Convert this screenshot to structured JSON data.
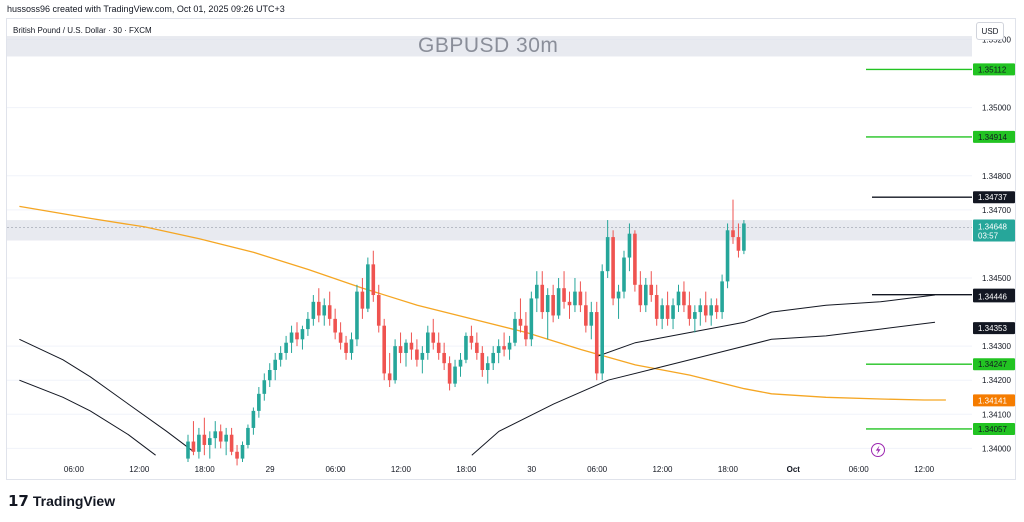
{
  "header": {
    "attribution": "hussoss96 created with TradingView.com, Oct 01, 2025 09:26 UTC+3"
  },
  "chart_header": {
    "symbol_line": "British Pound / U.S. Dollar · 30 · FXCM",
    "watermark": "GBPUSD 30m",
    "currency_button": "USD"
  },
  "footer": {
    "brand": "TradingView",
    "logo_icon": "tradingview-logo-icon"
  },
  "chart_data": {
    "type": "candlestick",
    "title": "GBPUSD 30m",
    "price_axis": {
      "ylim": [
        1.3396,
        1.3526
      ],
      "ticks": [
        "1.35200",
        "1.35000",
        "1.34800",
        "1.34700",
        "1.34500",
        "1.34300",
        "1.34200",
        "1.34100",
        "1.34000"
      ]
    },
    "time_axis": {
      "ticks": [
        "06:00",
        "12:00",
        "18:00",
        "29",
        "06:00",
        "12:00",
        "18:00",
        "30",
        "06:00",
        "12:00",
        "18:00",
        "Oct",
        "06:00",
        "12:00"
      ],
      "tick_index": [
        2,
        14,
        26,
        38,
        50,
        62,
        74,
        86,
        98,
        110,
        122,
        134,
        146,
        158
      ]
    },
    "zones": [
      {
        "from": 1.3515,
        "to": 1.3521
      },
      {
        "from": 1.3461,
        "to": 1.3467
      }
    ],
    "horizontal_lines": [
      {
        "price": 1.35112,
        "label": "1.35112",
        "color": "#22c322"
      },
      {
        "price": 1.34914,
        "label": "1.34914",
        "color": "#22c322"
      },
      {
        "price": 1.34737,
        "label": "1.34737",
        "color": "#131722"
      },
      {
        "price": 1.34451,
        "label": "1.34451",
        "color": "#131722"
      },
      {
        "price": 1.34247,
        "label": "1.34247",
        "color": "#22c322"
      },
      {
        "price": 1.34057,
        "label": "1.34057",
        "color": "#22c322"
      }
    ],
    "price_tags": [
      {
        "price": 1.34446,
        "label": "1.34446",
        "color": "#131722"
      },
      {
        "price": 1.34353,
        "label": "1.34353",
        "color": "#131722"
      },
      {
        "price": 1.34141,
        "label": "1.34141",
        "color": "#f57c00"
      }
    ],
    "last_price": {
      "price": 1.34648,
      "label": "1.34648",
      "countdown": "03:57",
      "color": "#26a69a"
    },
    "colors": {
      "up": "#26a69a",
      "down": "#ef5350",
      "ema_long": "#f5a623",
      "ma": "#131722",
      "grid": "#f0f3fa"
    },
    "ema_long": [
      [
        -8,
        1.3471
      ],
      [
        5,
        1.34675
      ],
      [
        15,
        1.3465
      ],
      [
        25,
        1.34615
      ],
      [
        35,
        1.34575
      ],
      [
        45,
        1.34525
      ],
      [
        55,
        1.3447
      ],
      [
        65,
        1.3442
      ],
      [
        75,
        1.3438
      ],
      [
        85,
        1.3434
      ],
      [
        95,
        1.3429
      ],
      [
        105,
        1.34245
      ],
      [
        115,
        1.34215
      ],
      [
        125,
        1.34175
      ],
      [
        130,
        1.3416
      ],
      [
        140,
        1.3415
      ],
      [
        150,
        1.34145
      ],
      [
        158,
        1.34142
      ],
      [
        162,
        1.34142
      ]
    ],
    "ma_a": [
      [
        -8,
        1.3432
      ],
      [
        0,
        1.3426
      ],
      [
        5,
        1.3421
      ],
      [
        12,
        1.3413
      ],
      [
        19,
        1.3405
      ],
      [
        24,
        1.3399
      ]
    ],
    "ma_b": [
      [
        -8,
        1.342
      ],
      [
        0,
        1.3415
      ],
      [
        5,
        1.3411
      ],
      [
        12,
        1.3404
      ],
      [
        17,
        1.3398
      ]
    ],
    "ma_c": [
      [
        75,
        1.3398
      ],
      [
        80,
        1.3405
      ],
      [
        90,
        1.3413
      ],
      [
        100,
        1.342
      ],
      [
        110,
        1.3424
      ],
      [
        120,
        1.3428
      ],
      [
        130,
        1.3432
      ],
      [
        140,
        1.3433
      ],
      [
        150,
        1.3435
      ],
      [
        160,
        1.3437
      ]
    ],
    "ma_d": [
      [
        98,
        1.3427
      ],
      [
        105,
        1.3431
      ],
      [
        115,
        1.3434
      ],
      [
        125,
        1.3437
      ],
      [
        130,
        1.344
      ],
      [
        140,
        1.3442
      ],
      [
        145,
        1.34425
      ],
      [
        150,
        1.3443
      ],
      [
        155,
        1.3444
      ],
      [
        160,
        1.3445
      ]
    ],
    "candles": [
      [
        1.3397,
        1.3404,
        1.3396,
        1.3402
      ],
      [
        1.3402,
        1.3408,
        1.3398,
        1.3399
      ],
      [
        1.3399,
        1.3406,
        1.3397,
        1.3404
      ],
      [
        1.3404,
        1.3409,
        1.3398,
        1.3401
      ],
      [
        1.3401,
        1.3405,
        1.3397,
        1.3403
      ],
      [
        1.3403,
        1.3408,
        1.34,
        1.3405
      ],
      [
        1.3405,
        1.3407,
        1.34,
        1.3402
      ],
      [
        1.3402,
        1.3406,
        1.3398,
        1.3404
      ],
      [
        1.3404,
        1.3406,
        1.3398,
        1.3399
      ],
      [
        1.3399,
        1.3401,
        1.3395,
        1.3397
      ],
      [
        1.3397,
        1.3402,
        1.3396,
        1.3401
      ],
      [
        1.3401,
        1.3407,
        1.34,
        1.3406
      ],
      [
        1.3406,
        1.3412,
        1.3404,
        1.3411
      ],
      [
        1.3411,
        1.3418,
        1.3409,
        1.3416
      ],
      [
        1.3416,
        1.3422,
        1.3414,
        1.342
      ],
      [
        1.342,
        1.3425,
        1.3418,
        1.3423
      ],
      [
        1.3423,
        1.3428,
        1.342,
        1.3426
      ],
      [
        1.3426,
        1.343,
        1.3424,
        1.3428
      ],
      [
        1.3428,
        1.3433,
        1.3426,
        1.3431
      ],
      [
        1.3431,
        1.3436,
        1.3428,
        1.3434
      ],
      [
        1.3434,
        1.3437,
        1.343,
        1.3432
      ],
      [
        1.3432,
        1.3436,
        1.3429,
        1.3435
      ],
      [
        1.3435,
        1.344,
        1.3433,
        1.3438
      ],
      [
        1.3438,
        1.3445,
        1.3436,
        1.3443
      ],
      [
        1.3443,
        1.3447,
        1.3437,
        1.3439
      ],
      [
        1.3439,
        1.3444,
        1.3436,
        1.3442
      ],
      [
        1.3442,
        1.3446,
        1.3436,
        1.3438
      ],
      [
        1.3438,
        1.3441,
        1.3432,
        1.3434
      ],
      [
        1.3434,
        1.3437,
        1.3429,
        1.3431
      ],
      [
        1.3431,
        1.3433,
        1.3426,
        1.3428
      ],
      [
        1.3428,
        1.3434,
        1.3426,
        1.3432
      ],
      [
        1.3432,
        1.3448,
        1.343,
        1.3446
      ],
      [
        1.3446,
        1.345,
        1.3438,
        1.3441
      ],
      [
        1.3441,
        1.3456,
        1.344,
        1.3454
      ],
      [
        1.3454,
        1.3458,
        1.3443,
        1.3445
      ],
      [
        1.3445,
        1.3448,
        1.3434,
        1.3436
      ],
      [
        1.3436,
        1.3438,
        1.342,
        1.3422
      ],
      [
        1.3422,
        1.3428,
        1.3418,
        1.342
      ],
      [
        1.342,
        1.3432,
        1.3419,
        1.343
      ],
      [
        1.343,
        1.3434,
        1.3425,
        1.3428
      ],
      [
        1.3428,
        1.3432,
        1.3424,
        1.3431
      ],
      [
        1.3431,
        1.3434,
        1.3426,
        1.3429
      ],
      [
        1.3429,
        1.3432,
        1.3424,
        1.3426
      ],
      [
        1.3426,
        1.343,
        1.3422,
        1.3428
      ],
      [
        1.3428,
        1.3436,
        1.3426,
        1.3434
      ],
      [
        1.3434,
        1.3438,
        1.3429,
        1.3431
      ],
      [
        1.3431,
        1.3434,
        1.3426,
        1.3428
      ],
      [
        1.3428,
        1.3431,
        1.3423,
        1.3425
      ],
      [
        1.3425,
        1.3427,
        1.3417,
        1.3419
      ],
      [
        1.3419,
        1.3426,
        1.3418,
        1.3424
      ],
      [
        1.3424,
        1.3428,
        1.3421,
        1.3426
      ],
      [
        1.3426,
        1.3434,
        1.3425,
        1.3433
      ],
      [
        1.3433,
        1.3436,
        1.3429,
        1.3431
      ],
      [
        1.3431,
        1.3434,
        1.3426,
        1.3428
      ],
      [
        1.3428,
        1.343,
        1.3421,
        1.3423
      ],
      [
        1.3423,
        1.3427,
        1.3419,
        1.3425
      ],
      [
        1.3425,
        1.343,
        1.3423,
        1.3428
      ],
      [
        1.3428,
        1.3432,
        1.3425,
        1.343
      ],
      [
        1.343,
        1.3434,
        1.3427,
        1.3429
      ],
      [
        1.3429,
        1.3433,
        1.3426,
        1.3431
      ],
      [
        1.3431,
        1.344,
        1.343,
        1.3438
      ],
      [
        1.3438,
        1.3444,
        1.3434,
        1.3436
      ],
      [
        1.3436,
        1.344,
        1.343,
        1.3432
      ],
      [
        1.3432,
        1.3446,
        1.343,
        1.3444
      ],
      [
        1.3444,
        1.3452,
        1.344,
        1.3448
      ],
      [
        1.3448,
        1.3452,
        1.3438,
        1.344
      ],
      [
        1.344,
        1.3447,
        1.3432,
        1.3445
      ],
      [
        1.3445,
        1.3448,
        1.3437,
        1.3439
      ],
      [
        1.3439,
        1.345,
        1.3438,
        1.3447
      ],
      [
        1.3447,
        1.3452,
        1.3441,
        1.3443
      ],
      [
        1.3443,
        1.3446,
        1.3438,
        1.3442
      ],
      [
        1.3442,
        1.345,
        1.344,
        1.3446
      ],
      [
        1.3446,
        1.3449,
        1.344,
        1.3442
      ],
      [
        1.3442,
        1.3446,
        1.3434,
        1.3436
      ],
      [
        1.3436,
        1.3443,
        1.3432,
        1.344
      ],
      [
        1.344,
        1.3443,
        1.342,
        1.3422
      ],
      [
        1.3422,
        1.3454,
        1.342,
        1.3452
      ],
      [
        1.3452,
        1.3467,
        1.345,
        1.3462
      ],
      [
        1.3462,
        1.3464,
        1.3442,
        1.3444
      ],
      [
        1.3444,
        1.3448,
        1.3438,
        1.3446
      ],
      [
        1.3446,
        1.3458,
        1.3444,
        1.3456
      ],
      [
        1.3456,
        1.3466,
        1.3452,
        1.3463
      ],
      [
        1.3463,
        1.3464,
        1.3446,
        1.3448
      ],
      [
        1.3448,
        1.3452,
        1.344,
        1.3442
      ],
      [
        1.3442,
        1.345,
        1.344,
        1.3448
      ],
      [
        1.3448,
        1.3452,
        1.3443,
        1.3445
      ],
      [
        1.3445,
        1.3448,
        1.3436,
        1.3438
      ],
      [
        1.3438,
        1.3444,
        1.3435,
        1.3442
      ],
      [
        1.3442,
        1.3446,
        1.3436,
        1.3438
      ],
      [
        1.3438,
        1.3444,
        1.3435,
        1.3442
      ],
      [
        1.3442,
        1.3448,
        1.344,
        1.3446
      ],
      [
        1.3446,
        1.3449,
        1.344,
        1.3442
      ],
      [
        1.3442,
        1.3446,
        1.3436,
        1.3438
      ],
      [
        1.3438,
        1.3442,
        1.3434,
        1.344
      ],
      [
        1.344,
        1.3444,
        1.3436,
        1.3442
      ],
      [
        1.3442,
        1.3446,
        1.3437,
        1.3439
      ],
      [
        1.3439,
        1.3444,
        1.3436,
        1.3442
      ],
      [
        1.3442,
        1.3444,
        1.3438,
        1.344
      ],
      [
        1.344,
        1.3451,
        1.3438,
        1.3449
      ],
      [
        1.3449,
        1.3466,
        1.3447,
        1.3464
      ],
      [
        1.3464,
        1.3473,
        1.346,
        1.3462
      ],
      [
        1.3462,
        1.3466,
        1.3456,
        1.3458
      ],
      [
        1.3458,
        1.3467,
        1.3457,
        1.3466
      ]
    ]
  }
}
